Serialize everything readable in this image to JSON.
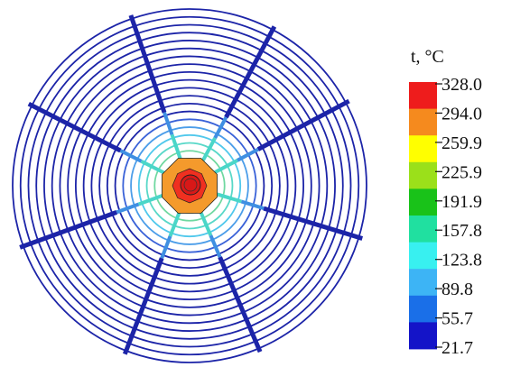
{
  "legend": {
    "title": "t, °C",
    "ticks": [
      "328.0",
      "294.0",
      "259.9",
      "225.9",
      "191.9",
      "157.8",
      "123.8",
      "89.8",
      "55.7",
      "21.7"
    ],
    "swatch_colors": [
      "#ee1c1c",
      "#f58a1e",
      "#ffff00",
      "#9be01a",
      "#19c219",
      "#20e0a0",
      "#38f0f0",
      "#3db4f5",
      "#1a6fe8",
      "#1414c8"
    ]
  },
  "rings": {
    "count": 20,
    "color": "#1c24a8",
    "inner_colors": [
      "#8ecb6a",
      "#6fd8a0",
      "#58d8c8",
      "#50c8ec",
      "#4b9de9",
      "#3a62d8"
    ]
  },
  "spokes": {
    "angles_deg": [
      -62,
      -28,
      17,
      67,
      111,
      160,
      207,
      251
    ],
    "color": "#1c24a8"
  },
  "center": {
    "octagon_color": "#f49a2c",
    "hot_color": "#f03020",
    "core_color": "#d81818"
  }
}
